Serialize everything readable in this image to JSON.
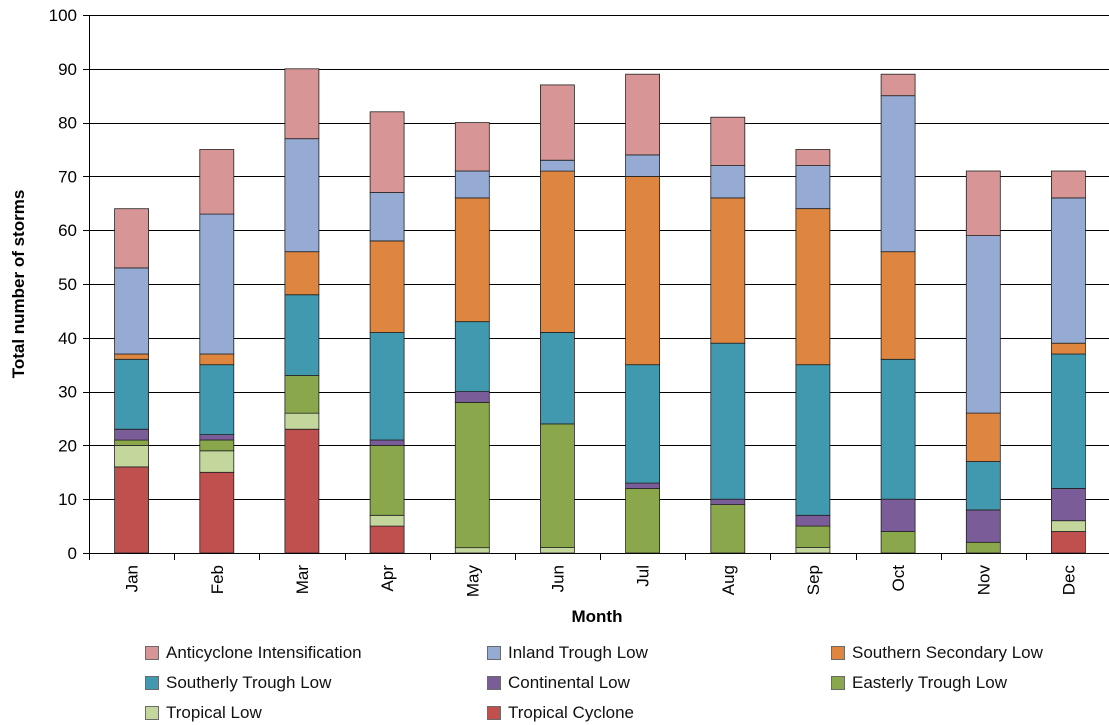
{
  "chart_data": {
    "type": "bar",
    "stacked": true,
    "categories": [
      "Jan",
      "Feb",
      "Mar",
      "Apr",
      "May",
      "Jun",
      "Jul",
      "Aug",
      "Sep",
      "Oct",
      "Nov",
      "Dec"
    ],
    "xlabel": "Month",
    "ylabel": "Total number of storms",
    "ylim": [
      0,
      100
    ],
    "yticks": [
      0,
      10,
      20,
      30,
      40,
      50,
      60,
      70,
      80,
      90,
      100
    ],
    "grid": true,
    "legend_position": "bottom",
    "series": [
      {
        "name": "Tropical Cyclone",
        "color": "#C0504D",
        "values": [
          16,
          15,
          23,
          5,
          0,
          0,
          0,
          0,
          0,
          0,
          0,
          4
        ]
      },
      {
        "name": "Tropical Low",
        "color": "#C3D69B",
        "values": [
          4,
          4,
          3,
          2,
          1,
          1,
          0,
          0,
          1,
          0,
          0,
          2
        ]
      },
      {
        "name": "Easterly Trough Low",
        "color": "#8AA84B",
        "values": [
          1,
          2,
          7,
          13,
          27,
          23,
          12,
          9,
          4,
          4,
          2,
          0
        ]
      },
      {
        "name": "Continental Low",
        "color": "#7A5C99",
        "values": [
          2,
          1,
          0,
          1,
          2,
          0,
          1,
          1,
          2,
          6,
          6,
          6
        ]
      },
      {
        "name": "Southerly Trough Low",
        "color": "#4199AF",
        "values": [
          13,
          13,
          15,
          20,
          13,
          17,
          22,
          29,
          28,
          26,
          9,
          25
        ]
      },
      {
        "name": "Southern Secondary Low",
        "color": "#DE8640",
        "values": [
          1,
          2,
          8,
          17,
          23,
          30,
          35,
          27,
          29,
          20,
          9,
          2
        ]
      },
      {
        "name": "Inland Trough Low",
        "color": "#95ABD4",
        "values": [
          16,
          26,
          21,
          9,
          5,
          2,
          4,
          6,
          8,
          29,
          33,
          27
        ]
      },
      {
        "name": "Anticyclone Intensification",
        "color": "#D89595",
        "values": [
          11,
          12,
          13,
          15,
          9,
          14,
          15,
          9,
          3,
          4,
          12,
          5
        ]
      }
    ]
  },
  "legend": {
    "rows": [
      [
        "Anticyclone Intensification",
        "Inland Trough Low",
        "Southern Secondary Low"
      ],
      [
        "Southerly Trough Low",
        "Continental Low",
        "Easterly Trough Low"
      ],
      [
        "Tropical Low",
        "Tropical Cyclone"
      ]
    ]
  }
}
